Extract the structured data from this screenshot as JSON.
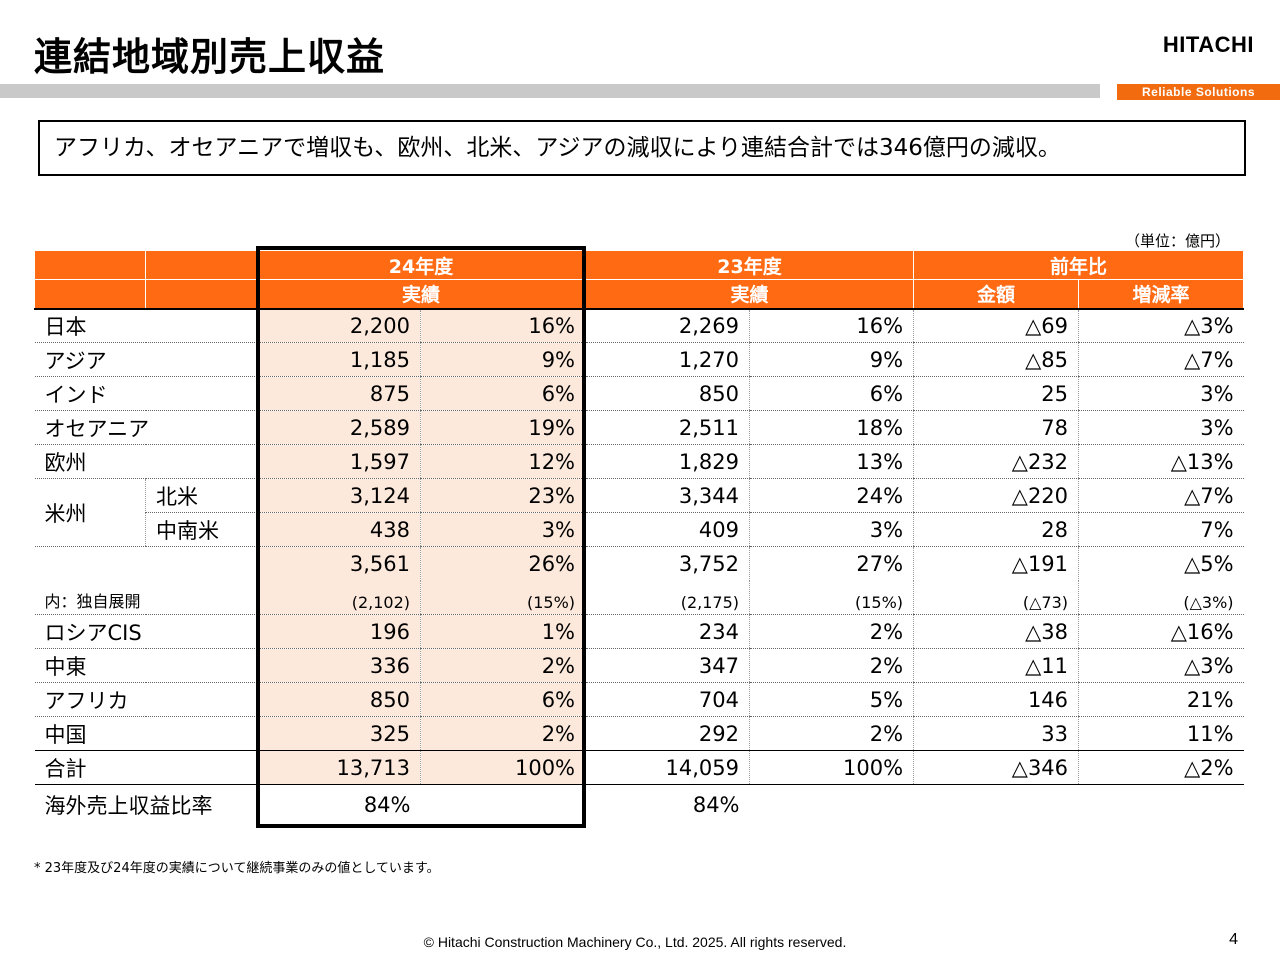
{
  "header": {
    "title": "連結地域別売上収益",
    "logo": "HITACHI",
    "tagline": "Reliable Solutions"
  },
  "summary": "アフリカ、オセアニアで増収も、欧州、北米、アジアの減収により連結合計では346億円の減収。",
  "unit": "（単位：億円）",
  "table": {
    "fy24": "24年度",
    "fy24_sub": "実績",
    "fy23": "23年度",
    "fy23_sub": "実績",
    "yoy": "前年比",
    "yoy_amount": "金額",
    "yoy_rate": "増減率",
    "rows": {
      "japan": [
        "日本",
        "2,200",
        "16%",
        "2,269",
        "16%",
        "△69",
        "△3%"
      ],
      "asia": [
        "アジア",
        "1,185",
        "9%",
        "1,270",
        "9%",
        "△85",
        "△7%"
      ],
      "india": [
        "インド",
        "875",
        "6%",
        "850",
        "6%",
        "25",
        "3%"
      ],
      "oceania": [
        "オセアニア",
        "2,589",
        "19%",
        "2,511",
        "18%",
        "78",
        "3%"
      ],
      "europe": [
        "欧州",
        "1,597",
        "12%",
        "1,829",
        "13%",
        "△232",
        "△13%"
      ],
      "na": [
        "北米",
        "3,124",
        "23%",
        "3,344",
        "24%",
        "△220",
        "△7%"
      ],
      "la": [
        "中南米",
        "438",
        "3%",
        "409",
        "3%",
        "28",
        "7%"
      ],
      "americas_label": "米州",
      "americas_total": [
        "3,561",
        "26%",
        "3,752",
        "27%",
        "△191",
        "△5%"
      ],
      "independent": [
        "内：独自展開",
        "(2,102)",
        "(15%)",
        "(2,175)",
        "(15%)",
        "(△73)",
        "(△3%)"
      ],
      "cis": [
        "ロシアCIS",
        "196",
        "1%",
        "234",
        "2%",
        "△38",
        "△16%"
      ],
      "mideast": [
        "中東",
        "336",
        "2%",
        "347",
        "2%",
        "△11",
        "△3%"
      ],
      "africa": [
        "アフリカ",
        "850",
        "6%",
        "704",
        "5%",
        "146",
        "21%"
      ],
      "china": [
        "中国",
        "325",
        "2%",
        "292",
        "2%",
        "33",
        "11%"
      ],
      "total": [
        "合計",
        "13,713",
        "100%",
        "14,059",
        "100%",
        "△346",
        "△2%"
      ],
      "overseas": [
        "海外売上収益比率",
        "84%",
        "84%"
      ]
    }
  },
  "footnote": "* 23年度及び24年度の実績について継続事業のみの値としています。",
  "copyright": "© Hitachi Construction Machinery Co., Ltd. 2025. All rights reserved.",
  "page_number": "4",
  "colors": {
    "accent": "#ff6a13",
    "highlight": "#fde9dc",
    "bar_gray": "#c9c9c9"
  }
}
